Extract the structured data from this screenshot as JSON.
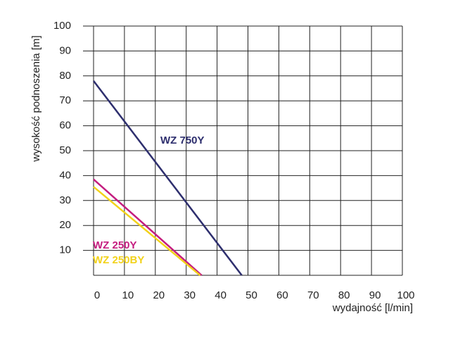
{
  "chart_data": {
    "type": "line",
    "y_label": "wysokość podnoszenia [m]",
    "x_label": "wydajność [l/min]",
    "xlim": [
      0,
      100
    ],
    "xticks": [
      0,
      10,
      20,
      30,
      40,
      50,
      60,
      70,
      80,
      90,
      100
    ],
    "ylim": [
      0,
      100
    ],
    "yticks": [
      10,
      20,
      30,
      40,
      50,
      60,
      70,
      80,
      90,
      100
    ],
    "grid": true,
    "series": [
      {
        "name": "WZ 750Y",
        "color": "#2e2f6e",
        "x": [
          0,
          48
        ],
        "values": [
          78,
          0
        ]
      },
      {
        "name": "WZ 250Y",
        "color": "#c41d7f",
        "x": [
          0,
          35
        ],
        "values": [
          38.5,
          0
        ]
      },
      {
        "name": "WZ 250BY",
        "color": "#f2d21a",
        "x": [
          0,
          34.5
        ],
        "values": [
          35.5,
          0
        ]
      }
    ]
  }
}
